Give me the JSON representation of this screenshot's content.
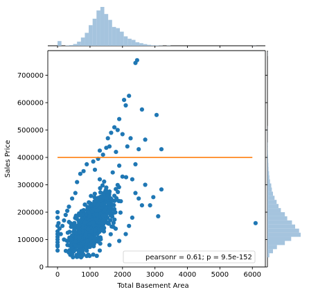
{
  "chart_data": {
    "type": "scatter",
    "xlabel": "Total Basement Area",
    "ylabel": "Sales Price",
    "xlim": [
      -300,
      6400
    ],
    "ylim": [
      0,
      790000
    ],
    "x_ticks": [
      0,
      1000,
      2000,
      3000,
      4000,
      5000,
      6000
    ],
    "y_ticks": [
      0,
      100000,
      200000,
      300000,
      400000,
      500000,
      600000,
      700000
    ],
    "x_tick_labels": [
      "0",
      "1000",
      "2000",
      "3000",
      "4000",
      "5000",
      "6000"
    ],
    "y_tick_labels": [
      "0",
      "100000",
      "200000",
      "300000",
      "400000",
      "500000",
      "600000",
      "700000"
    ],
    "legend": {
      "text": "pearsonr = 0.61; p = 9.5e-152",
      "placement": "lower-right"
    },
    "reference_line": {
      "y": 400000,
      "x_range": [
        0,
        6000
      ],
      "color": "#ff7f0e"
    },
    "colors": {
      "points": "#1f77b4",
      "hist": "#a5c4de",
      "line": "#ff7f0e"
    },
    "grid": false,
    "scatter_cluster": {
      "center": [
        1050,
        170000
      ],
      "n_points": 1460,
      "note_values_read": "dense band between x 0-2200, y 35000-460000"
    },
    "scatter_points": [
      [
        0,
        200000
      ],
      [
        0,
        180000
      ],
      [
        0,
        150000
      ],
      [
        0,
        130000
      ],
      [
        0,
        120000
      ],
      [
        0,
        110000
      ],
      [
        0,
        100000
      ],
      [
        0,
        90000
      ],
      [
        0,
        80000
      ],
      [
        0,
        75000
      ],
      [
        0,
        60000
      ],
      [
        30,
        160000
      ],
      [
        60,
        140000
      ],
      [
        2400,
        745000
      ],
      [
        2450,
        755000
      ],
      [
        2200,
        625000
      ],
      [
        2050,
        610000
      ],
      [
        2100,
        590000
      ],
      [
        2600,
        575000
      ],
      [
        3050,
        555000
      ],
      [
        1900,
        540000
      ],
      [
        1750,
        510000
      ],
      [
        1850,
        500000
      ],
      [
        1650,
        490000
      ],
      [
        2000,
        485000
      ],
      [
        2250,
        470000
      ],
      [
        1550,
        470000
      ],
      [
        2700,
        465000
      ],
      [
        3200,
        430000
      ],
      [
        2150,
        440000
      ],
      [
        2500,
        430000
      ],
      [
        3200,
        283000
      ],
      [
        3100,
        185000
      ],
      [
        6100,
        160000
      ],
      [
        2950,
        255000
      ],
      [
        2850,
        225000
      ],
      [
        2600,
        225000
      ],
      [
        2300,
        320000
      ],
      [
        2700,
        300000
      ],
      [
        2400,
        375000
      ],
      [
        1800,
        420000
      ],
      [
        1600,
        440000
      ],
      [
        1500,
        435000
      ],
      [
        1400,
        410000
      ],
      [
        1300,
        425000
      ],
      [
        1250,
        395000
      ],
      [
        1100,
        385000
      ],
      [
        900,
        375000
      ],
      [
        800,
        350000
      ],
      [
        700,
        340000
      ],
      [
        600,
        310000
      ],
      [
        550,
        270000
      ],
      [
        450,
        250000
      ],
      [
        350,
        220000
      ],
      [
        300,
        205000
      ],
      [
        250,
        190000
      ],
      [
        200,
        170000
      ],
      [
        150,
        150000
      ],
      [
        100,
        120000
      ],
      [
        200,
        100000
      ],
      [
        400,
        80000
      ],
      [
        500,
        60000
      ],
      [
        700,
        50000
      ],
      [
        900,
        40000
      ],
      [
        1100,
        45000
      ],
      [
        1300,
        60000
      ],
      [
        1600,
        80000
      ],
      [
        1900,
        95000
      ],
      [
        2100,
        120000
      ],
      [
        2200,
        150000
      ],
      [
        2300,
        180000
      ],
      [
        1950,
        240000
      ],
      [
        1750,
        260000
      ],
      [
        1500,
        290000
      ],
      [
        1300,
        320000
      ],
      [
        1700,
        345000
      ],
      [
        1150,
        355000
      ],
      [
        1900,
        370000
      ],
      [
        2000,
        330000
      ],
      [
        2500,
        250000
      ],
      [
        2400,
        270000
      ]
    ],
    "x_marginal_hist": {
      "bin_edges_start": 0,
      "bin_width": 120,
      "counts": [
        40,
        0,
        3,
        6,
        15,
        35,
        70,
        110,
        175,
        230,
        300,
        330,
        270,
        220,
        160,
        150,
        120,
        80,
        60,
        50,
        30,
        22,
        14,
        8,
        4,
        3,
        2,
        0,
        2,
        0,
        0,
        0,
        0,
        0,
        0,
        0,
        0,
        0,
        0,
        0,
        0,
        0,
        0,
        0,
        0,
        0,
        0,
        0,
        0,
        0,
        1
      ]
    },
    "y_marginal_hist": {
      "bin_edges_start": 35000,
      "bin_width": 15000,
      "counts": [
        12,
        35,
        60,
        110,
        150,
        210,
        200,
        175,
        155,
        125,
        110,
        85,
        70,
        58,
        45,
        35,
        28,
        24,
        16,
        12,
        10,
        7,
        6,
        5,
        4,
        3,
        2,
        2,
        1,
        1,
        1,
        1,
        0,
        0,
        0,
        0,
        0,
        0,
        0,
        0,
        0,
        0,
        0,
        0,
        0,
        0,
        0,
        0,
        0,
        1
      ]
    }
  }
}
